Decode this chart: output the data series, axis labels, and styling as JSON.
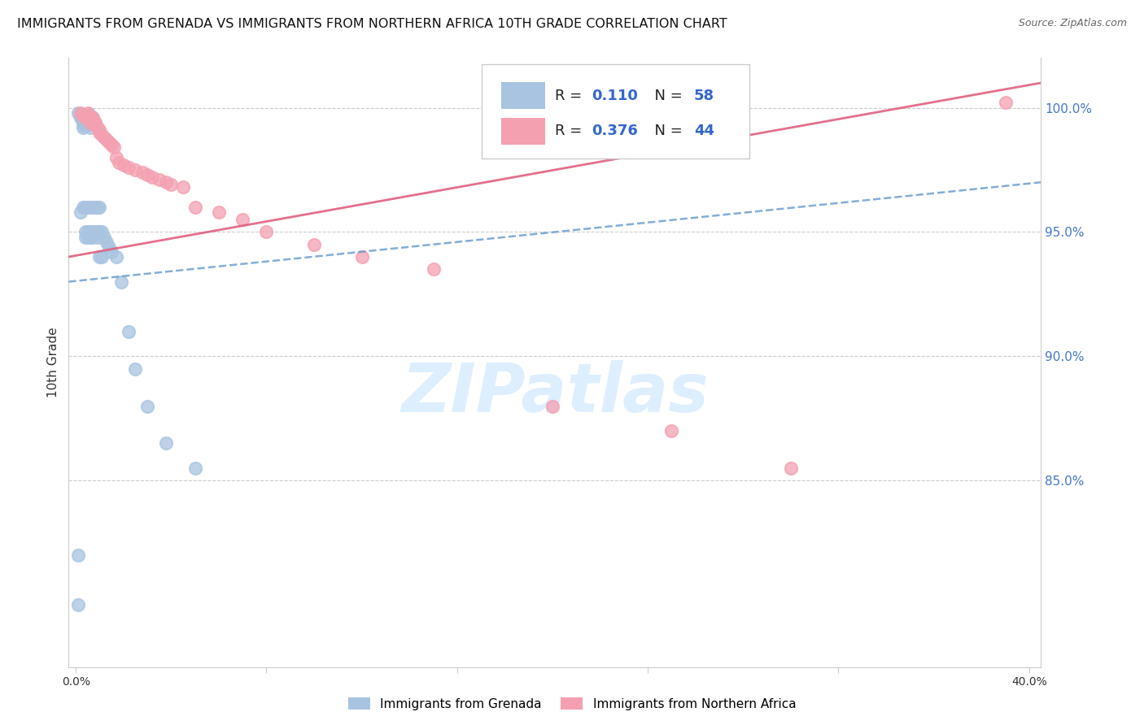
{
  "title": "IMMIGRANTS FROM GRENADA VS IMMIGRANTS FROM NORTHERN AFRICA 10TH GRADE CORRELATION CHART",
  "source": "Source: ZipAtlas.com",
  "ylabel": "10th Grade",
  "legend_R1": "0.110",
  "legend_N1": "58",
  "legend_R2": "0.376",
  "legend_N2": "44",
  "series1_color": "#a8c4e0",
  "series2_color": "#f4a0b0",
  "line1_color": "#6699cc",
  "line2_color": "#e06080",
  "watermark_color": "#ddeeff",
  "y_ticks": [
    0.85,
    0.9,
    0.95,
    1.0
  ],
  "y_tick_labels": [
    "85.0%",
    "90.0%",
    "95.0%",
    "100.0%"
  ],
  "ylim_low": 0.775,
  "ylim_high": 1.02,
  "xlim_low": -0.003,
  "xlim_high": 0.405,
  "x_ticks": [
    0.0,
    0.08,
    0.16,
    0.24,
    0.32,
    0.4
  ],
  "scatter1_x": [
    0.001,
    0.001,
    0.002,
    0.002,
    0.002,
    0.003,
    0.003,
    0.003,
    0.003,
    0.003,
    0.003,
    0.004,
    0.004,
    0.004,
    0.004,
    0.004,
    0.004,
    0.005,
    0.005,
    0.005,
    0.005,
    0.005,
    0.005,
    0.006,
    0.006,
    0.006,
    0.006,
    0.006,
    0.006,
    0.006,
    0.007,
    0.007,
    0.007,
    0.007,
    0.007,
    0.008,
    0.008,
    0.008,
    0.009,
    0.009,
    0.009,
    0.01,
    0.01,
    0.01,
    0.011,
    0.011,
    0.012,
    0.013,
    0.014,
    0.015,
    0.017,
    0.019,
    0.022,
    0.025,
    0.03,
    0.038,
    0.05,
    0.001
  ],
  "scatter1_y": [
    0.998,
    0.82,
    0.997,
    0.996,
    0.958,
    0.997,
    0.996,
    0.995,
    0.993,
    0.992,
    0.96,
    0.997,
    0.995,
    0.993,
    0.96,
    0.95,
    0.948,
    0.997,
    0.995,
    0.993,
    0.96,
    0.95,
    0.948,
    0.997,
    0.996,
    0.994,
    0.992,
    0.96,
    0.95,
    0.948,
    0.996,
    0.995,
    0.96,
    0.95,
    0.948,
    0.994,
    0.96,
    0.95,
    0.96,
    0.95,
    0.948,
    0.96,
    0.95,
    0.94,
    0.95,
    0.94,
    0.948,
    0.946,
    0.944,
    0.942,
    0.94,
    0.93,
    0.91,
    0.895,
    0.88,
    0.865,
    0.855,
    0.8
  ],
  "scatter2_x": [
    0.002,
    0.003,
    0.004,
    0.004,
    0.005,
    0.005,
    0.006,
    0.006,
    0.007,
    0.008,
    0.008,
    0.009,
    0.01,
    0.01,
    0.011,
    0.012,
    0.013,
    0.014,
    0.015,
    0.016,
    0.017,
    0.018,
    0.02,
    0.022,
    0.025,
    0.028,
    0.03,
    0.032,
    0.035,
    0.038,
    0.04,
    0.045,
    0.05,
    0.06,
    0.07,
    0.08,
    0.1,
    0.12,
    0.15,
    0.2,
    0.25,
    0.3,
    0.39,
    0.005
  ],
  "scatter2_y": [
    0.998,
    0.997,
    0.997,
    0.996,
    0.997,
    0.996,
    0.995,
    0.994,
    0.996,
    0.994,
    0.993,
    0.992,
    0.991,
    0.99,
    0.989,
    0.988,
    0.987,
    0.986,
    0.985,
    0.984,
    0.98,
    0.978,
    0.977,
    0.976,
    0.975,
    0.974,
    0.973,
    0.972,
    0.971,
    0.97,
    0.969,
    0.968,
    0.96,
    0.958,
    0.955,
    0.95,
    0.945,
    0.94,
    0.935,
    0.88,
    0.87,
    0.855,
    1.002,
    0.998
  ],
  "line1_x": [
    -0.003,
    0.405
  ],
  "line1_y": [
    0.93,
    0.97
  ],
  "line2_x": [
    -0.003,
    0.405
  ],
  "line2_y": [
    0.94,
    1.01
  ]
}
